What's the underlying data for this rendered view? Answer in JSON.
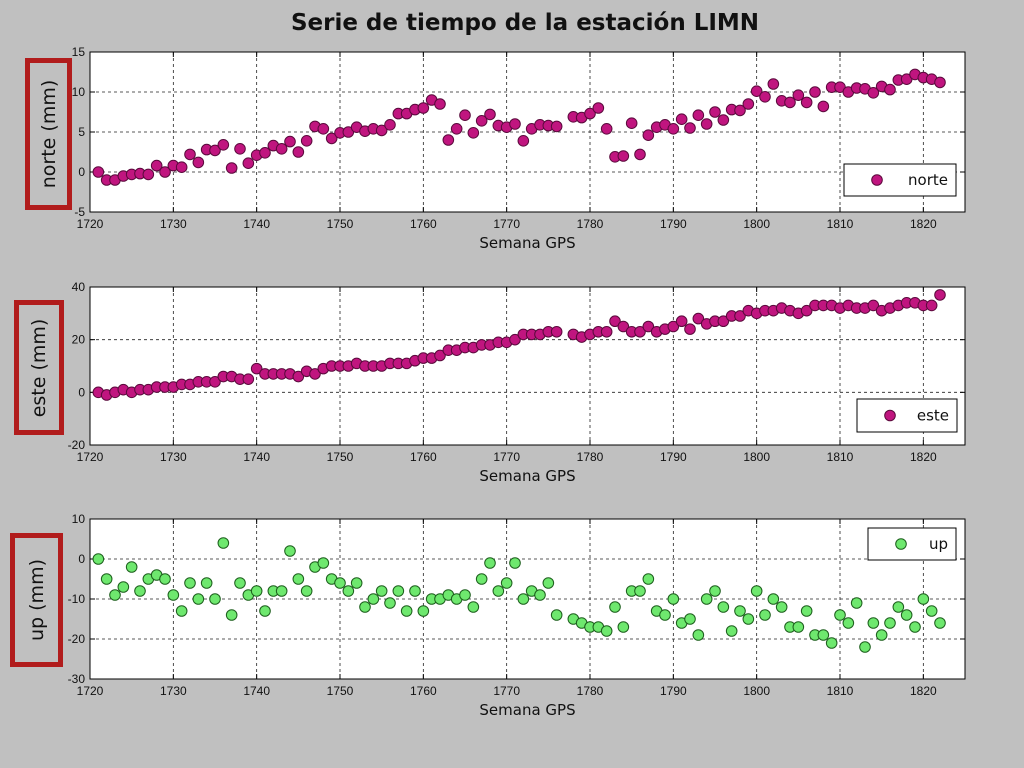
{
  "title": "Serie de tiempo de la estación LIMN",
  "chart_data": [
    {
      "type": "scatter",
      "ylabel": "norte (mm)",
      "xlabel": "Semana GPS",
      "series_name": "norte",
      "marker_color": "#c0157f",
      "marker_edge": "#5a0a3c",
      "xlim": [
        1720,
        1825
      ],
      "ylim": [
        -5,
        15
      ],
      "xticks": [
        1720,
        1730,
        1740,
        1750,
        1760,
        1770,
        1780,
        1790,
        1800,
        1810,
        1820
      ],
      "yticks": [
        -5,
        0,
        5,
        10,
        15
      ],
      "grid": true,
      "legend": "bottom-right",
      "x": [
        1721,
        1722,
        1723,
        1724,
        1725,
        1726,
        1727,
        1728,
        1729,
        1730,
        1731,
        1732,
        1733,
        1734,
        1735,
        1736,
        1737,
        1738,
        1739,
        1740,
        1741,
        1742,
        1743,
        1744,
        1745,
        1746,
        1747,
        1748,
        1749,
        1750,
        1751,
        1752,
        1753,
        1754,
        1755,
        1756,
        1757,
        1758,
        1759,
        1760,
        1761,
        1762,
        1763,
        1764,
        1765,
        1766,
        1767,
        1768,
        1769,
        1770,
        1771,
        1772,
        1773,
        1774,
        1775,
        1776,
        1778,
        1779,
        1780,
        1781,
        1782,
        1783,
        1784,
        1785,
        1786,
        1787,
        1788,
        1789,
        1790,
        1791,
        1792,
        1793,
        1794,
        1795,
        1796,
        1797,
        1798,
        1799,
        1800,
        1801,
        1802,
        1803,
        1804,
        1805,
        1806,
        1807,
        1808,
        1809,
        1810,
        1811,
        1812,
        1813,
        1814,
        1815,
        1816,
        1817,
        1818,
        1819,
        1820,
        1821,
        1822
      ],
      "y": [
        0.0,
        -1.0,
        -1.0,
        -0.5,
        -0.3,
        -0.2,
        -0.3,
        0.8,
        0.0,
        0.8,
        0.6,
        2.2,
        1.2,
        2.8,
        2.7,
        3.4,
        0.5,
        2.9,
        1.1,
        2.1,
        2.4,
        3.3,
        2.9,
        3.8,
        2.5,
        3.9,
        5.7,
        5.4,
        4.2,
        4.9,
        5.0,
        5.6,
        5.1,
        5.4,
        5.2,
        5.9,
        7.3,
        7.3,
        7.8,
        8.0,
        9.0,
        8.5,
        4.0,
        5.4,
        7.1,
        4.9,
        6.4,
        7.2,
        5.8,
        5.6,
        6.0,
        3.9,
        5.4,
        5.9,
        5.8,
        5.7,
        6.9,
        6.8,
        7.3,
        8.0,
        5.4,
        1.9,
        2.0,
        6.1,
        2.2,
        4.6,
        5.6,
        5.9,
        5.4,
        6.6,
        5.5,
        7.1,
        6.0,
        7.5,
        6.5,
        7.8,
        7.7,
        8.5,
        10.1,
        9.4,
        11.0,
        8.9,
        8.7,
        9.6,
        8.7,
        10.0,
        8.2,
        10.6,
        10.6,
        10.0,
        10.5,
        10.4,
        9.9,
        10.7,
        10.3,
        11.5,
        11.6,
        12.2,
        11.8,
        11.6,
        11.2
      ]
    },
    {
      "type": "scatter",
      "ylabel": "este (mm)",
      "xlabel": "Semana GPS",
      "series_name": "este",
      "marker_color": "#c0157f",
      "marker_edge": "#5a0a3c",
      "xlim": [
        1720,
        1825
      ],
      "ylim": [
        -20,
        40
      ],
      "xticks": [
        1720,
        1730,
        1740,
        1750,
        1760,
        1770,
        1780,
        1790,
        1800,
        1810,
        1820
      ],
      "yticks": [
        -20,
        0,
        20,
        40
      ],
      "grid": true,
      "legend": "bottom-right",
      "x": [
        1721,
        1722,
        1723,
        1724,
        1725,
        1726,
        1727,
        1728,
        1729,
        1730,
        1731,
        1732,
        1733,
        1734,
        1735,
        1736,
        1737,
        1738,
        1739,
        1740,
        1741,
        1742,
        1743,
        1744,
        1745,
        1746,
        1747,
        1748,
        1749,
        1750,
        1751,
        1752,
        1753,
        1754,
        1755,
        1756,
        1757,
        1758,
        1759,
        1760,
        1761,
        1762,
        1763,
        1764,
        1765,
        1766,
        1767,
        1768,
        1769,
        1770,
        1771,
        1772,
        1773,
        1774,
        1775,
        1776,
        1778,
        1779,
        1780,
        1781,
        1782,
        1783,
        1784,
        1785,
        1786,
        1787,
        1788,
        1789,
        1790,
        1791,
        1792,
        1793,
        1794,
        1795,
        1796,
        1797,
        1798,
        1799,
        1800,
        1801,
        1802,
        1803,
        1804,
        1805,
        1806,
        1807,
        1808,
        1809,
        1810,
        1811,
        1812,
        1813,
        1814,
        1815,
        1816,
        1817,
        1818,
        1819,
        1820,
        1821,
        1822
      ],
      "y": [
        0,
        -1,
        0,
        1,
        0,
        1,
        1,
        2,
        2,
        2,
        3,
        3,
        4,
        4,
        4,
        6,
        6,
        5,
        5,
        9,
        7,
        7,
        7,
        7,
        6,
        8,
        7,
        9,
        10,
        10,
        10,
        11,
        10,
        10,
        10,
        11,
        11,
        11,
        12,
        13,
        13,
        14,
        16,
        16,
        17,
        17,
        18,
        18,
        19,
        19,
        20,
        22,
        22,
        22,
        23,
        23,
        22,
        21,
        22,
        23,
        23,
        27,
        25,
        23,
        23,
        25,
        23,
        24,
        25,
        27,
        24,
        28,
        26,
        27,
        27,
        29,
        29,
        31,
        30,
        31,
        31,
        32,
        31,
        30,
        31,
        33,
        33,
        33,
        32,
        33,
        32,
        32,
        33,
        31,
        32,
        33,
        34,
        34,
        33,
        33,
        37
      ]
    },
    {
      "type": "scatter",
      "ylabel": "up (mm)",
      "xlabel": "Semana GPS",
      "series_name": "up",
      "marker_color": "#6ee86e",
      "marker_edge": "#1c5e1c",
      "xlim": [
        1720,
        1825
      ],
      "ylim": [
        -30,
        10
      ],
      "xticks": [
        1720,
        1730,
        1740,
        1750,
        1760,
        1770,
        1780,
        1790,
        1800,
        1810,
        1820
      ],
      "yticks": [
        -30,
        -20,
        -10,
        0,
        10
      ],
      "grid": true,
      "legend": "top-right",
      "x": [
        1721,
        1722,
        1723,
        1724,
        1725,
        1726,
        1727,
        1728,
        1729,
        1730,
        1731,
        1732,
        1733,
        1734,
        1735,
        1736,
        1737,
        1738,
        1739,
        1740,
        1741,
        1742,
        1743,
        1744,
        1745,
        1746,
        1747,
        1748,
        1749,
        1750,
        1751,
        1752,
        1753,
        1754,
        1755,
        1756,
        1757,
        1758,
        1759,
        1760,
        1761,
        1762,
        1763,
        1764,
        1765,
        1766,
        1767,
        1768,
        1769,
        1770,
        1771,
        1772,
        1773,
        1774,
        1775,
        1776,
        1778,
        1779,
        1780,
        1781,
        1782,
        1783,
        1784,
        1785,
        1786,
        1787,
        1788,
        1789,
        1790,
        1791,
        1792,
        1793,
        1794,
        1795,
        1796,
        1797,
        1798,
        1799,
        1800,
        1801,
        1802,
        1803,
        1804,
        1805,
        1806,
        1807,
        1808,
        1809,
        1810,
        1811,
        1812,
        1813,
        1814,
        1815,
        1816,
        1817,
        1818,
        1819,
        1820,
        1821,
        1822
      ],
      "y": [
        0,
        -5,
        -9,
        -7,
        -2,
        -8,
        -5,
        -4,
        -5,
        -9,
        -13,
        -6,
        -10,
        -6,
        -10,
        4,
        -14,
        -6,
        -9,
        -8,
        -13,
        -8,
        -8,
        2,
        -5,
        -8,
        -2,
        -1,
        -5,
        -6,
        -8,
        -6,
        -12,
        -10,
        -8,
        -11,
        -8,
        -13,
        -8,
        -13,
        -10,
        -10,
        -9,
        -10,
        -9,
        -12,
        -5,
        -1,
        -8,
        -6,
        -1,
        -10,
        -8,
        -9,
        -6,
        -14,
        -15,
        -16,
        -17,
        -17,
        -18,
        -12,
        -17,
        -8,
        -8,
        -5,
        -13,
        -14,
        -10,
        -16,
        -15,
        -19,
        -10,
        -8,
        -12,
        -18,
        -13,
        -15,
        -8,
        -14,
        -10,
        -12,
        -17,
        -17,
        -13,
        -19,
        -19,
        -21,
        -14,
        -16,
        -11,
        -22,
        -16,
        -19,
        -16,
        -12,
        -14,
        -17,
        -10,
        -13,
        -16
      ]
    }
  ]
}
